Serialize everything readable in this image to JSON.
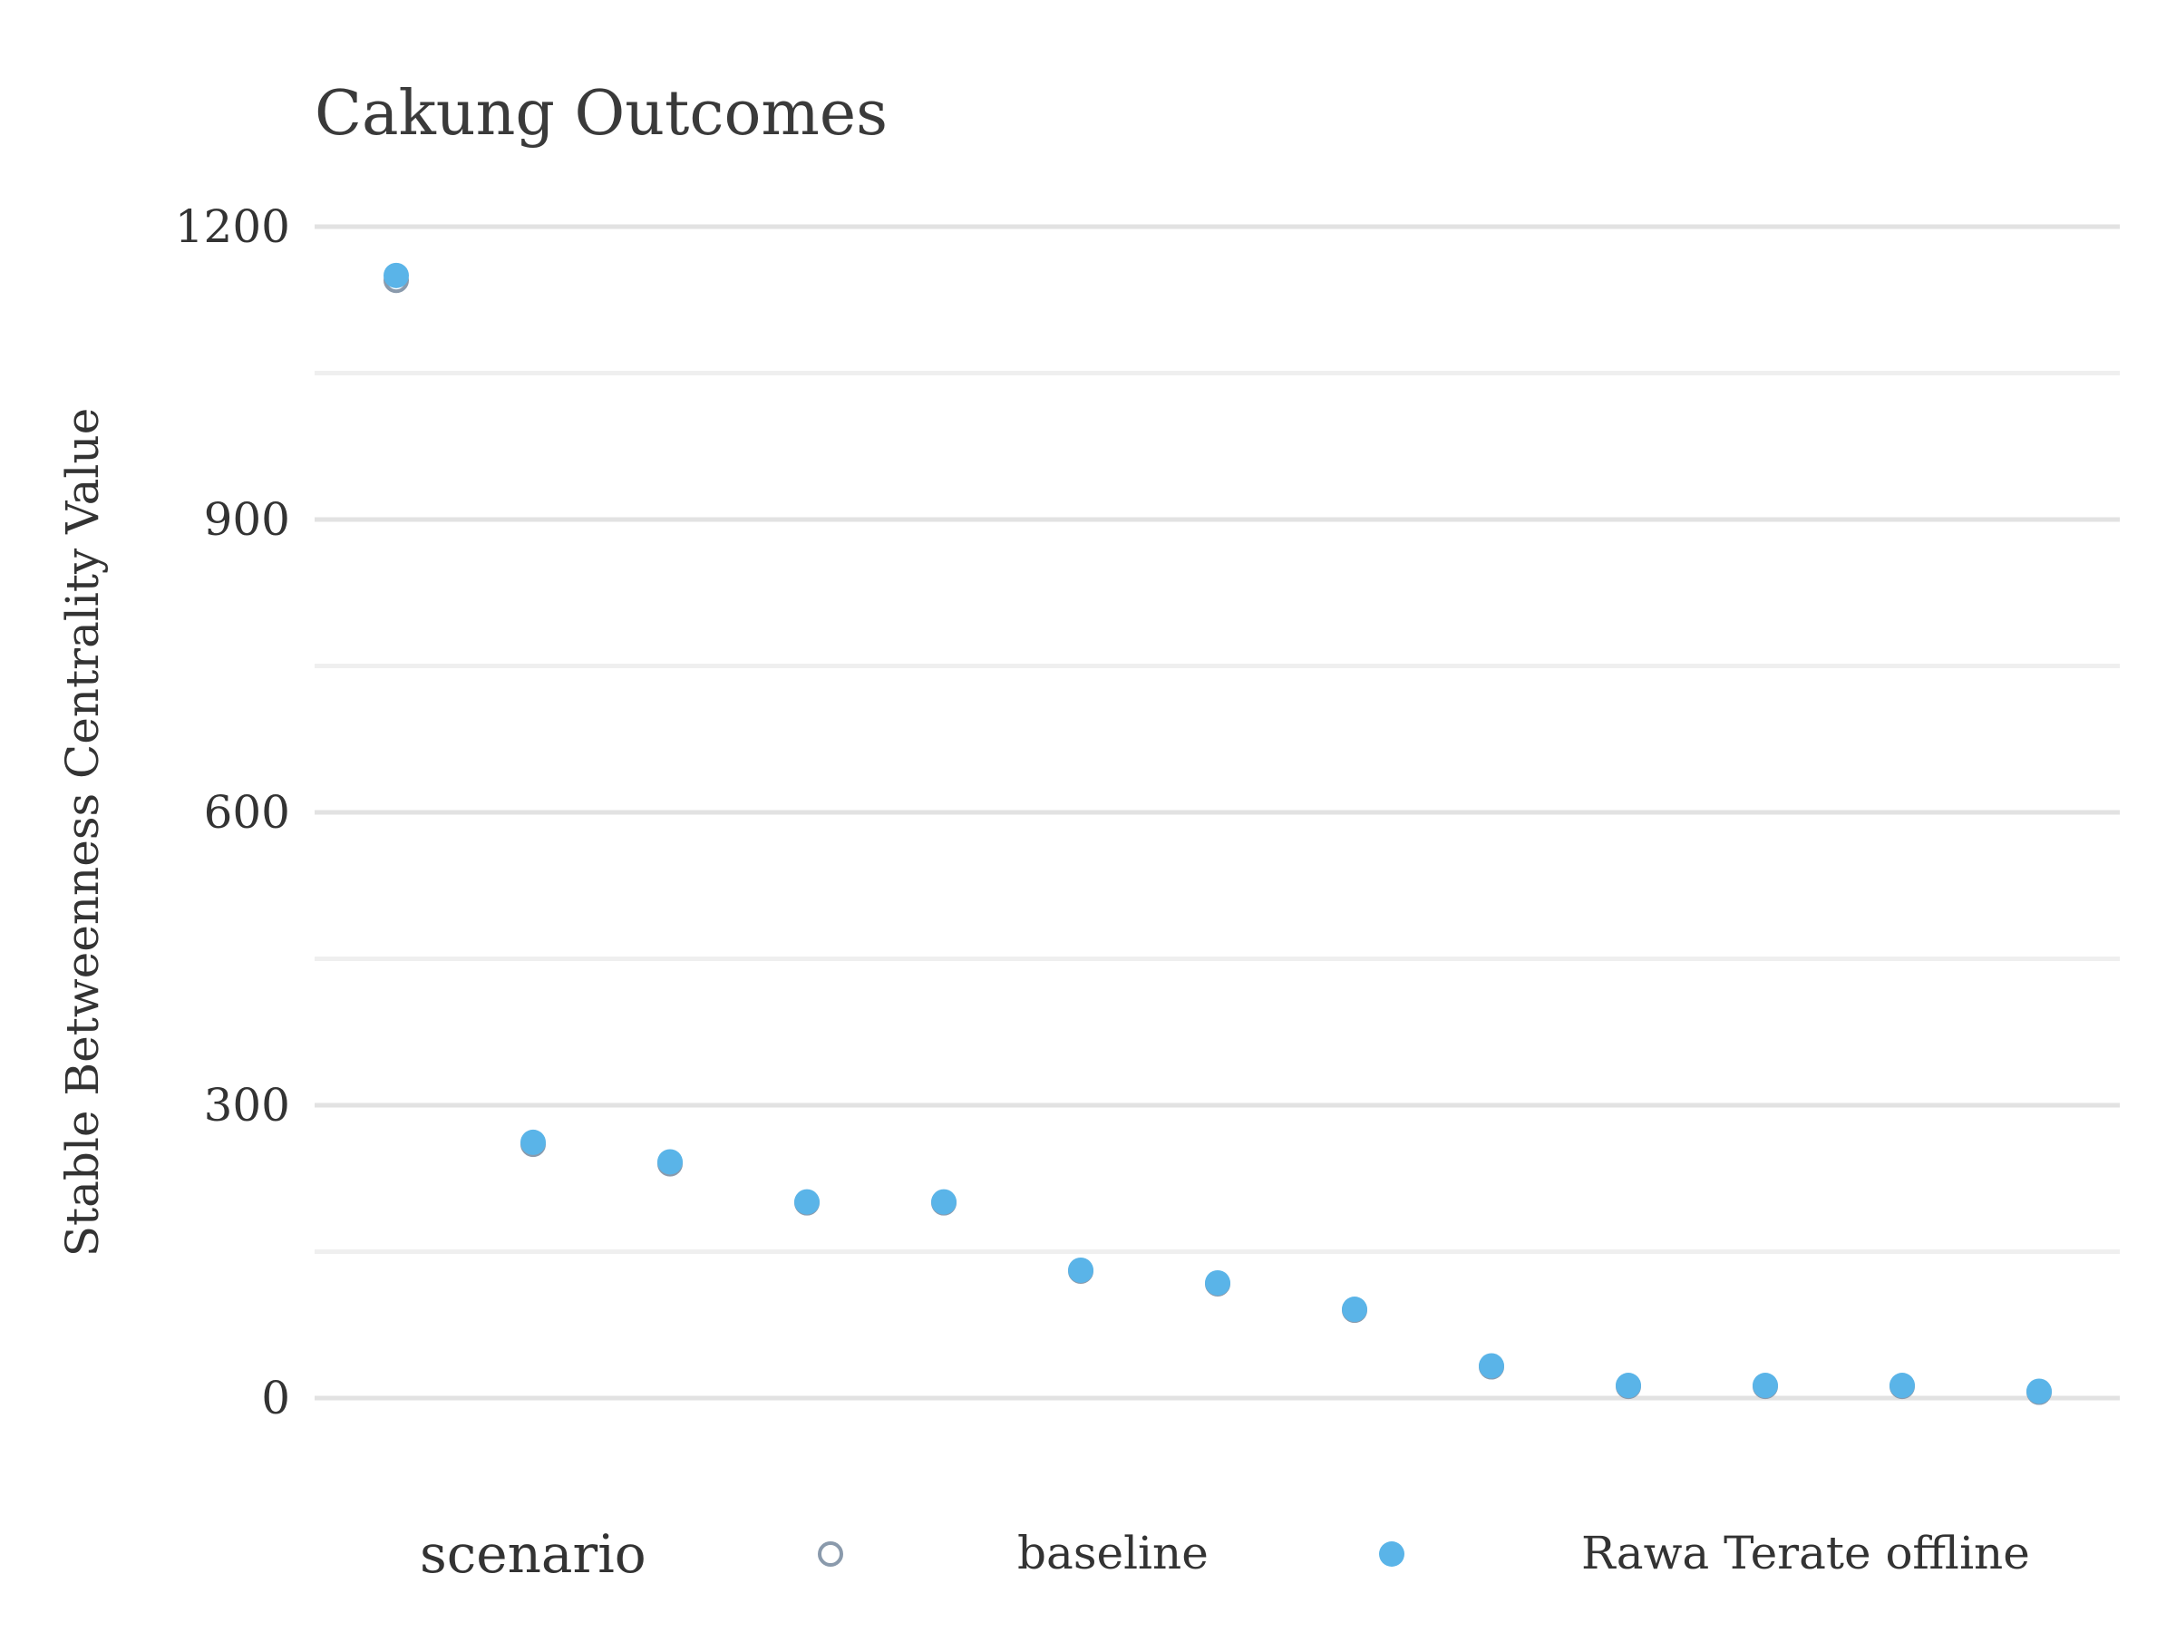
{
  "chart_data": {
    "type": "scatter",
    "title": "Cakung Outcomes",
    "xlabel": "",
    "ylabel": "Stable Betweenness Centrality Value",
    "ylim": [
      -120,
      1260
    ],
    "y_ticks": [
      "0",
      "300",
      "600",
      "900",
      "1200"
    ],
    "y_tick_values": [
      0,
      300,
      600,
      900,
      1200
    ],
    "grid": true,
    "legend_position": "bottom",
    "legend_title": "scenario",
    "x": [
      1,
      2,
      3,
      4,
      5,
      6,
      7,
      8,
      9,
      10,
      11,
      12,
      13
    ],
    "series": [
      {
        "name": "baseline",
        "color": "#8a9aac",
        "marker": "hollow-circle",
        "values": [
          1145,
          260,
          240,
          200,
          200,
          130,
          117,
          90,
          32,
          12,
          12,
          12,
          6
        ]
      },
      {
        "name": "Rawa Terate offline",
        "color": "#5ab4e8",
        "marker": "filled-circle",
        "values": [
          1150,
          262,
          242,
          201,
          201,
          131,
          118,
          91,
          33,
          13,
          13,
          13,
          7
        ]
      }
    ]
  }
}
